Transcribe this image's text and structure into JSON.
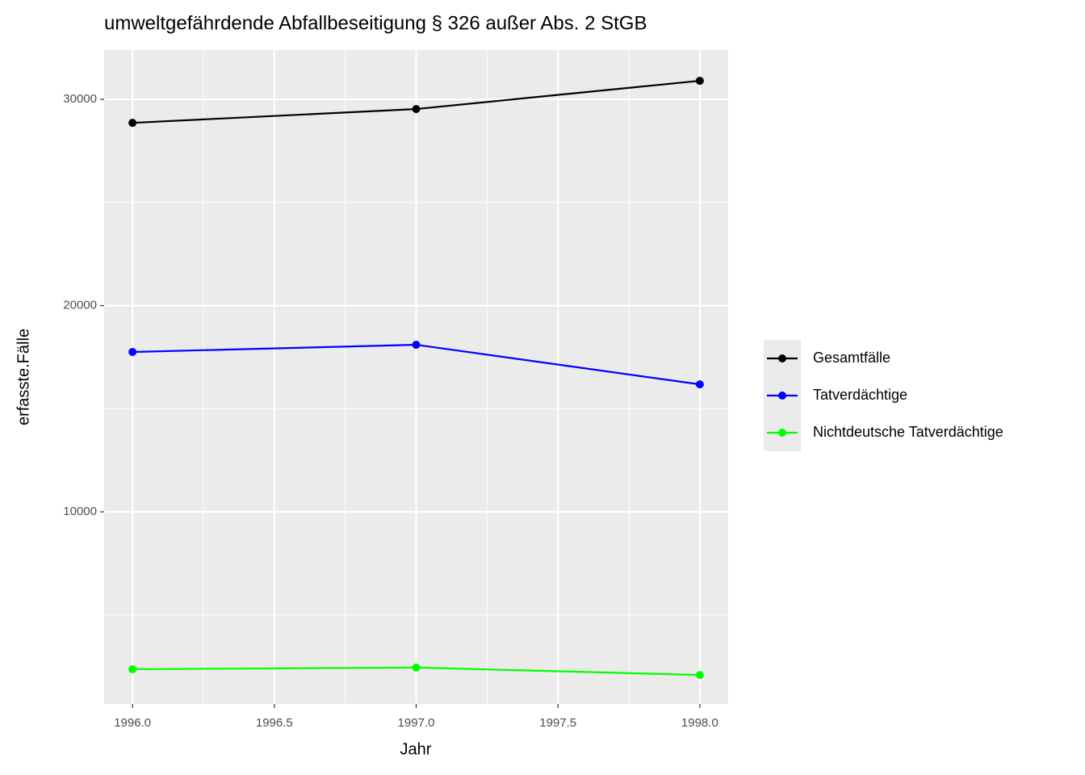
{
  "chart_data": {
    "type": "line",
    "title": "umweltgefährdende Abfallbeseitigung § 326 außer Abs. 2 StGB",
    "xlabel": "Jahr",
    "ylabel": "erfasste.Fälle",
    "x": [
      1996,
      1997,
      1998
    ],
    "series": [
      {
        "name": "Gesamtfälle",
        "color": "#000000",
        "values": [
          28860,
          29530,
          30900
        ]
      },
      {
        "name": "Tatverdächtige",
        "color": "#0000ff",
        "values": [
          17750,
          18100,
          16180
        ]
      },
      {
        "name": "Nichtdeutsche Tatverdächtige",
        "color": "#00ff00",
        "values": [
          2370,
          2450,
          2090
        ]
      }
    ],
    "xlim": [
      1995.9,
      1998.1
    ],
    "xticks": [
      {
        "value": 1996,
        "label": "1996.0"
      },
      {
        "value": 1996.5,
        "label": "1996.5"
      },
      {
        "value": 1997,
        "label": "1997.0"
      },
      {
        "value": 1997.5,
        "label": "1997.5"
      },
      {
        "value": 1998,
        "label": "1998.0"
      }
    ],
    "xminor": [
      1996.25,
      1996.75,
      1997.25,
      1997.75
    ],
    "ylim": [
      685,
      32390
    ],
    "yticks": [
      10000,
      20000,
      30000
    ],
    "yminor": [
      5000,
      15000,
      25000
    ],
    "grid": true,
    "legend": "right"
  }
}
